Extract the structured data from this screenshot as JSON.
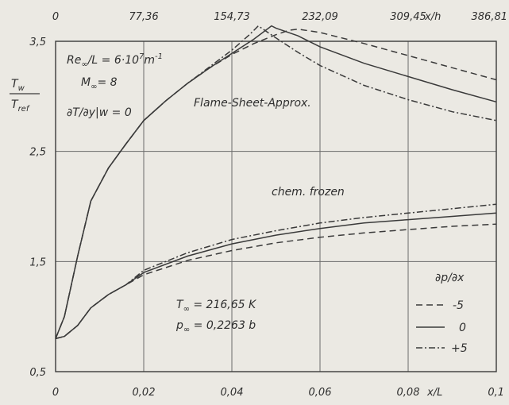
{
  "chart_data": {
    "type": "line",
    "xlabel": "x/L",
    "top_xlabel": "x/h",
    "xlim": [
      0,
      0.1
    ],
    "ylim": [
      0.5,
      3.5
    ],
    "x_ticks": [
      "0",
      "0,02",
      "0,04",
      "0,06",
      "0,08",
      "0,1"
    ],
    "top_ticks": [
      "0",
      "77,36",
      "154,73",
      "232,09",
      "309,45",
      "386,81"
    ],
    "y_ticks": [
      "0,5",
      "1,5",
      "2,5",
      "3,5"
    ],
    "ylabel": {
      "num": "T",
      "num_sub": "w",
      "den": "T",
      "den_sub": "ref"
    },
    "annotations": {
      "re": "Re",
      "re_rest": "/L = 6·10",
      "re_exp": "7",
      "re_unit": "m",
      "re_unit_exp": "-1",
      "mach": "M",
      "mach_rest": "= 8",
      "bc": "∂T/∂y|w = 0",
      "flame": "Flame-Sheet-Approx.",
      "frozen": "chem. frozen",
      "t_inf": "T",
      "t_inf_rest": " = 216,65 K",
      "p_inf": "p",
      "p_inf_rest": " = 0,2263 b",
      "inf": "∞"
    },
    "legend": {
      "title": "∂p/∂x",
      "placement": "bottom-right",
      "items": [
        {
          "label": "-5",
          "style": "dashed"
        },
        {
          "label": "0",
          "style": "solid"
        },
        {
          "label": "+5",
          "style": "dashdot"
        }
      ]
    },
    "series": [
      {
        "group": "flame-sheet",
        "style": "dashed",
        "x": [
          0,
          0.002,
          0.005,
          0.008,
          0.012,
          0.016,
          0.02,
          0.025,
          0.03,
          0.035,
          0.04,
          0.045,
          0.05,
          0.053,
          0.055,
          0.06,
          0.07,
          0.08,
          0.09,
          0.1
        ],
        "y": [
          0.8,
          1.0,
          1.55,
          2.05,
          2.35,
          2.57,
          2.78,
          2.96,
          3.12,
          3.26,
          3.38,
          3.48,
          3.56,
          3.6,
          3.61,
          3.58,
          3.48,
          3.37,
          3.26,
          3.15
        ]
      },
      {
        "group": "flame-sheet",
        "style": "solid",
        "x": [
          0,
          0.002,
          0.005,
          0.008,
          0.012,
          0.016,
          0.02,
          0.025,
          0.03,
          0.035,
          0.04,
          0.045,
          0.049,
          0.05,
          0.055,
          0.06,
          0.07,
          0.08,
          0.09,
          0.1
        ],
        "y": [
          0.8,
          1.0,
          1.55,
          2.05,
          2.35,
          2.57,
          2.78,
          2.96,
          3.12,
          3.26,
          3.39,
          3.52,
          3.64,
          3.62,
          3.55,
          3.45,
          3.3,
          3.18,
          3.06,
          2.95
        ]
      },
      {
        "group": "flame-sheet",
        "style": "dashdot",
        "x": [
          0,
          0.002,
          0.005,
          0.008,
          0.012,
          0.016,
          0.02,
          0.025,
          0.03,
          0.035,
          0.04,
          0.044,
          0.046,
          0.05,
          0.055,
          0.06,
          0.07,
          0.08,
          0.09,
          0.1
        ],
        "y": [
          0.8,
          1.0,
          1.55,
          2.05,
          2.35,
          2.57,
          2.78,
          2.96,
          3.12,
          3.27,
          3.42,
          3.56,
          3.64,
          3.53,
          3.4,
          3.28,
          3.1,
          2.97,
          2.86,
          2.78
        ]
      },
      {
        "group": "chem-frozen",
        "style": "dashed",
        "x": [
          0,
          0.002,
          0.005,
          0.008,
          0.012,
          0.016,
          0.02,
          0.03,
          0.04,
          0.05,
          0.06,
          0.07,
          0.08,
          0.09,
          0.1
        ],
        "y": [
          0.8,
          0.82,
          0.92,
          1.08,
          1.2,
          1.29,
          1.38,
          1.51,
          1.6,
          1.67,
          1.72,
          1.76,
          1.79,
          1.82,
          1.84
        ]
      },
      {
        "group": "chem-frozen",
        "style": "solid",
        "x": [
          0,
          0.002,
          0.005,
          0.008,
          0.012,
          0.016,
          0.02,
          0.03,
          0.04,
          0.05,
          0.06,
          0.07,
          0.08,
          0.09,
          0.1
        ],
        "y": [
          0.8,
          0.82,
          0.92,
          1.08,
          1.2,
          1.29,
          1.4,
          1.55,
          1.66,
          1.74,
          1.8,
          1.85,
          1.88,
          1.91,
          1.94
        ]
      },
      {
        "group": "chem-frozen",
        "style": "dashdot",
        "x": [
          0,
          0.002,
          0.005,
          0.008,
          0.012,
          0.016,
          0.02,
          0.03,
          0.04,
          0.05,
          0.06,
          0.07,
          0.08,
          0.09,
          0.1
        ],
        "y": [
          0.8,
          0.82,
          0.92,
          1.08,
          1.2,
          1.29,
          1.42,
          1.58,
          1.7,
          1.78,
          1.85,
          1.9,
          1.94,
          1.98,
          2.02
        ]
      }
    ]
  }
}
